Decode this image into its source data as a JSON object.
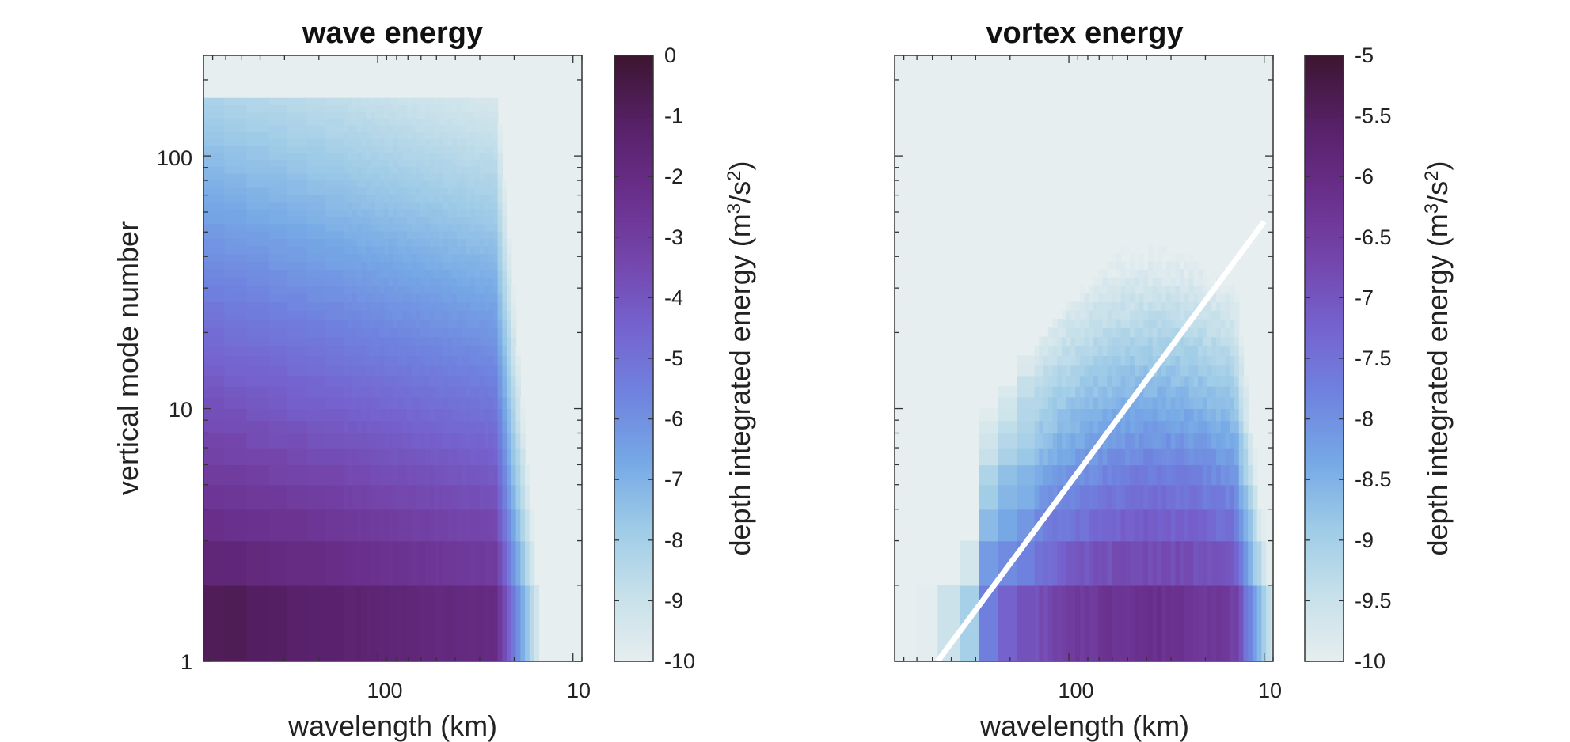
{
  "chart_data": [
    {
      "type": "heatmap",
      "title": "wave energy",
      "xlabel": "wavelength (km)",
      "ylabel": "vertical mode number",
      "x_scale": "log",
      "x_reversed": true,
      "xlim": [
        780,
        9
      ],
      "x_ticks": [
        100,
        10
      ],
      "x_tick_labels": [
        "100",
        "10"
      ],
      "y_scale": "log",
      "ylim": [
        1,
        250
      ],
      "y_ticks": [
        1,
        10,
        100
      ],
      "y_tick_labels": [
        "1",
        "10",
        "100"
      ],
      "z_description": "log10 of depth integrated energy; energy near 0 at long wavelengths and low modes, decreasing with mode number; empty above mode ~170 and at wavelengths below ~12 km",
      "mode_cutoff": 170,
      "colorbar": {
        "label_main": "depth integrated energy (m",
        "label_sup1": "3",
        "label_mid": "/s",
        "label_sup2": "2",
        "label_end": ")",
        "min": -10,
        "max": 0,
        "ticks": [
          0,
          -1,
          -2,
          -3,
          -4,
          -5,
          -6,
          -7,
          -8,
          -9,
          -10
        ],
        "tick_labels": [
          "0",
          "-1",
          "-2",
          "-3",
          "-4",
          "-5",
          "-6",
          "-7",
          "-8",
          "-9",
          "-10"
        ]
      }
    },
    {
      "type": "heatmap",
      "title": "vortex energy",
      "xlabel": "wavelength (km)",
      "ylabel": "",
      "x_scale": "log",
      "x_reversed": true,
      "xlim": [
        780,
        9
      ],
      "x_ticks": [
        100,
        10
      ],
      "x_tick_labels": [
        "100",
        "10"
      ],
      "y_scale": "log",
      "ylim": [
        1,
        250
      ],
      "y_ticks": [
        1,
        10,
        100
      ],
      "y_tick_labels": [],
      "z_description": "log10 of depth integrated energy; energy up to about -5.8 concentrated at low modes and wavelengths 20-150 km, supported region grows with decreasing wavelength; white line marks a diagonal from about (470 km, mode 1) to (10 km, mode 55)",
      "overlay_line": {
        "x": [
          470,
          10
        ],
        "y": [
          1,
          55
        ],
        "color": "#ffffff"
      },
      "colorbar": {
        "label_main": "depth integrated energy (m",
        "label_sup1": "3",
        "label_mid": "/s",
        "label_sup2": "2",
        "label_end": ")",
        "min": -10,
        "max": -5,
        "ticks": [
          -5,
          -5.5,
          -6,
          -6.5,
          -7,
          -7.5,
          -8,
          -8.5,
          -9,
          -9.5,
          -10
        ],
        "tick_labels": [
          "-5",
          "-5.5",
          "-6",
          "-6.5",
          "-7",
          "-7.5",
          "-8",
          "-8.5",
          "-9",
          "-9.5",
          "-10"
        ]
      }
    }
  ],
  "colormap": [
    "#e6eeef",
    "#c6e0ea",
    "#9ecbe7",
    "#76a8e6",
    "#6f83df",
    "#7563cf",
    "#7446ac",
    "#6a2f8c",
    "#58216a",
    "#3d1530"
  ]
}
